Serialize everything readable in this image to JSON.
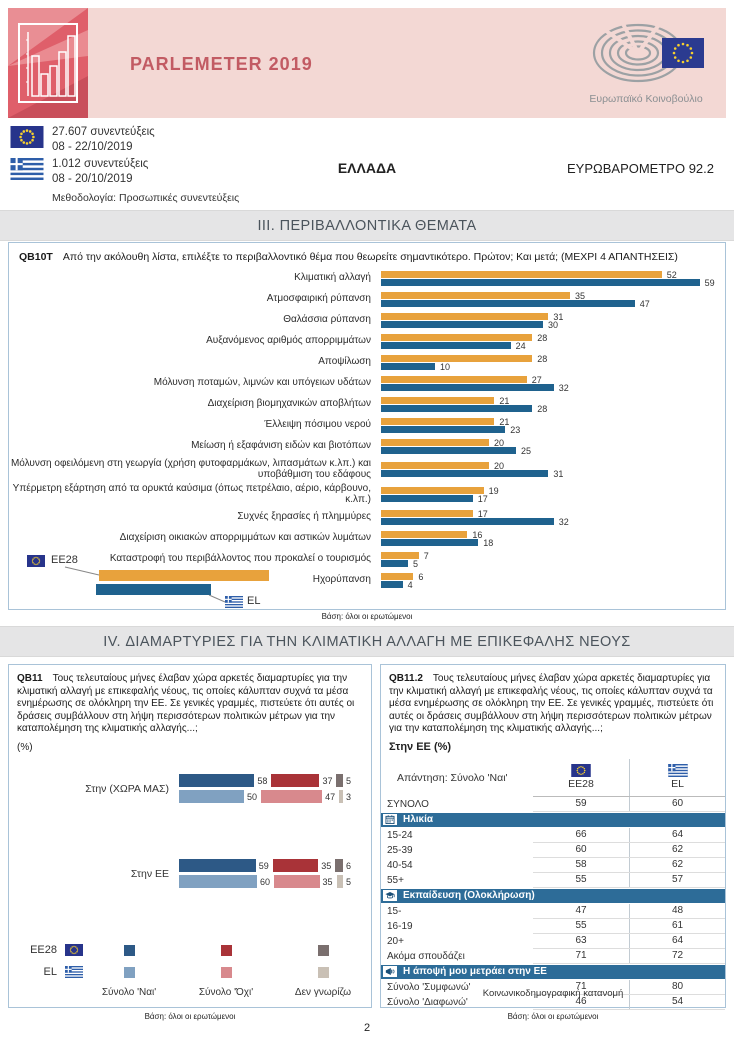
{
  "colors": {
    "accent_pink": "#F3D8D4",
    "title_red": "#C25B63",
    "panel_border": "#A9C3D8",
    "eu_bar": "#E8A23C",
    "el_bar": "#1F628E",
    "yes_dark": "#2D5986",
    "yes_light": "#80A1C1",
    "no_dark": "#A93338",
    "no_light": "#D8898D",
    "dk_dark": "#7A6F6E",
    "dk_light": "#C9C0B5",
    "section_bg": "#2D6C98"
  },
  "header": {
    "title": "PARLEMETER 2019",
    "ep_caption": "Ευρωπαϊκό Κοινοβούλιο"
  },
  "meta": {
    "eu_interviews": "27.607 συνεντεύξεις",
    "eu_dates": "08 - 22/10/2019",
    "el_interviews": "1.012 συνεντεύξεις",
    "el_dates": "08 - 20/10/2019",
    "methodology": "Μεθοδολογία: Προσωπικές συνεντεύξεις",
    "country": "ΕΛΛΑΔΑ",
    "survey": "ΕΥΡΩΒΑΡΟΜΕΤΡΟ 92.2"
  },
  "sections": {
    "s3": "III. ΠΕΡΙΒΑΛΛΟΝΤΙΚΑ ΘΕΜΑΤΑ",
    "s4": "IV. ΔΙΑΜΑΡΤΥΡΙΕΣ ΓΙΑ ΤΗΝ ΚΛΙΜΑΤΙΚΗ ΑΛΛΑΓΗ ΜΕ ΕΠΙΚΕΦΑΛΗΣ ΝΕΟΥΣ"
  },
  "qb10t": {
    "code": "QB10T",
    "question": "Από την ακόλουθη λίστα, επιλέξτε το περιβαλλοντικό θέμα που θεωρείτε  σημαντικότερο. Πρώτον; Και μετά; (ΜΕΧΡΙ 4 ΑΠΑΝΤΗΣΕΙΣ)",
    "legend_eu": "EE28",
    "legend_el": "EL",
    "base": "Βάση: όλοι οι ερωτώμενοι",
    "chart_data": {
      "type": "bar",
      "orientation": "horizontal",
      "xlim": [
        0,
        62
      ],
      "categories": [
        "Κλιματική αλλαγή",
        "Ατμοσφαιρική ρύπανση",
        "Θαλάσσια ρύπανση",
        "Αυξανόμενος αριθμός απορριμμάτων",
        "Αποψίλωση",
        "Μόλυνση ποταμών, λιμνών και υπόγειων υδάτων",
        "Διαχείριση βιομηχανικών αποβλήτων",
        "Έλλειψη πόσιμου νερού",
        "Μείωση ή εξαφάνιση ειδών και βιοτόπων",
        "Μόλυνση οφειλόμενη στη γεωργία (χρήση φυτοφαρμάκων, λιπασμάτων κ.λπ.) και υποβάθμιση του εδάφους",
        "Υπέρμετρη εξάρτηση από τα ορυκτά καύσιμα (όπως πετρέλαιο, αέριο, κάρβουνο, κ.λπ.)",
        "Συχνές ξηρασίες ή πλημμύρες",
        "Διαχείριση οικιακών απορριμμάτων και αστικών λυμάτων",
        "Καταστροφή του περιβάλλοντος που προκαλεί ο τουρισμός",
        "Ηχορύπανση"
      ],
      "series": [
        {
          "name": "EE28",
          "values": [
            52,
            35,
            31,
            28,
            28,
            27,
            21,
            21,
            20,
            20,
            19,
            17,
            16,
            7,
            6
          ]
        },
        {
          "name": "EL",
          "values": [
            59,
            47,
            30,
            24,
            10,
            32,
            28,
            23,
            25,
            31,
            17,
            32,
            18,
            5,
            4
          ]
        }
      ]
    }
  },
  "qb11": {
    "code": "QB11",
    "question": "Τους τελευταίους μήνες έλαβαν χώρα αρκετές διαμαρτυρίες για την κλιματική αλλαγή με επικεφαλής νέους, τις οποίες κάλυπταν συχνά τα μέσα ενημέρωσης σε ολόκληρη την ΕΕ. Σε γενικές γραμμές, πιστεύετε ότι αυτές οι δράσεις συμβάλλουν στη λήψη περισσότερων πολιτικών μέτρων για την καταπολέμηση της κλιματικής αλλαγής...;",
    "unit": "(%)",
    "base": "Βάση: όλοι οι ερωτώμενοι",
    "legend": {
      "eu": "EE28",
      "el": "EL",
      "yes": "Σύνολο 'Ναι'",
      "no": "Σύνολο 'Όχι'",
      "dk": "Δεν γνωρίζω"
    },
    "chart_data": {
      "type": "stacked-bar",
      "orientation": "horizontal",
      "groups": [
        {
          "label": "Στην (ΧΩΡΑ ΜΑΣ)",
          "rows": [
            {
              "name": "EE28",
              "yes": 58,
              "no": 37,
              "dk": 5
            },
            {
              "name": "EL",
              "yes": 50,
              "no": 47,
              "dk": 3
            }
          ]
        },
        {
          "label": "Στην ΕΕ",
          "rows": [
            {
              "name": "EE28",
              "yes": 59,
              "no": 35,
              "dk": 6
            },
            {
              "name": "EL",
              "yes": 60,
              "no": 35,
              "dk": 5
            }
          ]
        }
      ]
    }
  },
  "qb11_2": {
    "code": "QB11.2",
    "question": "Τους τελευταίους μήνες έλαβαν χώρα αρκετές διαμαρτυρίες για την κλιματική αλλαγή με επικεφαλής νέους, τις οποίες κάλυπταν συχνά τα μέσα ενημέρωσης σε ολόκληρη την ΕΕ. Σε γενικές γραμμές, πιστεύετε ότι αυτές οι δράσεις συμβάλλουν στη λήψη περισσότερων πολιτικών μέτρων για την καταπολέμηση της κλιματικής αλλαγής...;",
    "subtitle": "Στην ΕΕ  (%)",
    "table": {
      "header_label": "Απάντηση: Σύνολο 'Ναι'",
      "col_eu": "EE28",
      "col_el": "EL",
      "rows": [
        {
          "type": "data",
          "label": "ΣΥΝΟΛΟ",
          "eu": "59",
          "el": "60"
        },
        {
          "type": "section",
          "label": "Ηλικία",
          "icon": "calendar-icon"
        },
        {
          "type": "data",
          "label": "15-24",
          "eu": "66",
          "el": "64"
        },
        {
          "type": "data",
          "label": "25-39",
          "eu": "60",
          "el": "62"
        },
        {
          "type": "data",
          "label": "40-54",
          "eu": "58",
          "el": "62"
        },
        {
          "type": "data",
          "label": "55+",
          "eu": "55",
          "el": "57"
        },
        {
          "type": "section",
          "label": "Εκπαίδευση (Ολοκλήρωση)",
          "icon": "graduation-cap-icon"
        },
        {
          "type": "data",
          "label": "15-",
          "eu": "47",
          "el": "48"
        },
        {
          "type": "data",
          "label": "16-19",
          "eu": "55",
          "el": "61"
        },
        {
          "type": "data",
          "label": "20+",
          "eu": "63",
          "el": "64"
        },
        {
          "type": "data",
          "label": "Ακόμα σπουδάζει",
          "eu": "71",
          "el": "72"
        },
        {
          "type": "section",
          "label": "Η άποψή μου μετράει στην ΕΕ",
          "icon": "megaphone-icon"
        },
        {
          "type": "data",
          "label": "Σύνολο 'Συμφωνώ'",
          "eu": "71",
          "el": "80"
        },
        {
          "type": "data",
          "label": "Σύνολο 'Διαφωνώ'",
          "eu": "46",
          "el": "54"
        }
      ]
    },
    "footer": "Κοινωνικοδημογραφική κατανομή",
    "base": "Βάση: όλοι οι ερωτώμενοι"
  },
  "page_number": "2"
}
